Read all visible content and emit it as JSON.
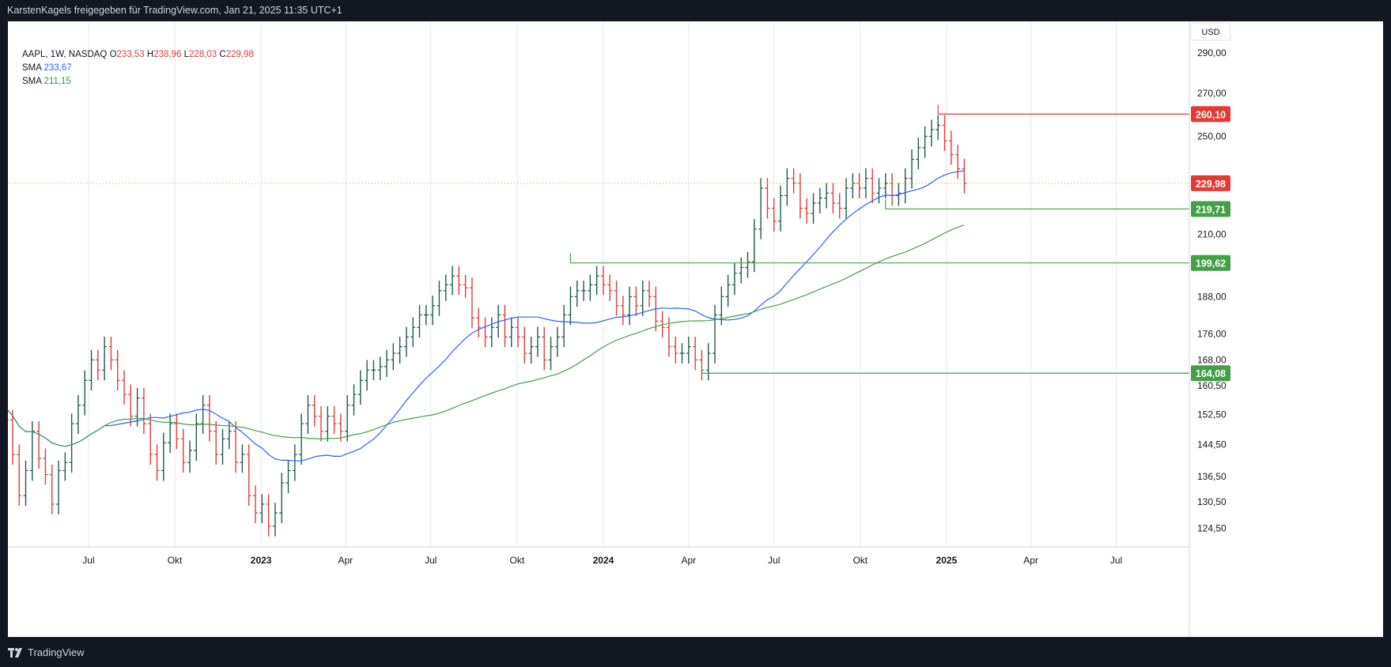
{
  "header": {
    "text": "KarstenKagels freigegeben für TradingView.com, Jan 21, 2025 11:35 UTC+1"
  },
  "footer": {
    "brand": "TradingView"
  },
  "legend": {
    "symbol": "AAPL, 1W, NASDAQ",
    "open_label": "O",
    "open": "233,53",
    "high_label": "H",
    "high": "238,96",
    "low_label": "L",
    "low": "228,03",
    "close_label": "C",
    "close": "229,98",
    "sma1_label": "SMA",
    "sma1_value": "233,67",
    "sma2_label": "SMA",
    "sma2_value": "211,15"
  },
  "currency": "USD",
  "colors": {
    "up": "#1e5c4a",
    "down": "#e03c3c",
    "sma_fast": "#2962ff",
    "sma_slow": "#43a047",
    "level_green": "#43a047",
    "level_red": "#e53935",
    "last_price": "#ff9800"
  },
  "chart_data": {
    "type": "ohlc",
    "scale": "log",
    "y_range": [
      121,
      305
    ],
    "y_ticks": [
      "124,50",
      "130,50",
      "136,50",
      "144,50",
      "152,50",
      "160,50",
      "168,00",
      "176,00",
      "188,00",
      "210,00",
      "250,00",
      "270,00",
      "290,00"
    ],
    "x_ticks": [
      {
        "label": "Jul",
        "date": "2022-07-01",
        "bold": false
      },
      {
        "label": "Okt",
        "date": "2022-10-01",
        "bold": false
      },
      {
        "label": "2023",
        "date": "2023-01-01",
        "bold": true
      },
      {
        "label": "Apr",
        "date": "2023-04-01",
        "bold": false
      },
      {
        "label": "Jul",
        "date": "2023-07-01",
        "bold": false
      },
      {
        "label": "Okt",
        "date": "2023-10-01",
        "bold": false
      },
      {
        "label": "2024",
        "date": "2024-01-01",
        "bold": true
      },
      {
        "label": "Apr",
        "date": "2024-04-01",
        "bold": false
      },
      {
        "label": "Jul",
        "date": "2024-07-01",
        "bold": false
      },
      {
        "label": "Okt",
        "date": "2024-10-01",
        "bold": false
      },
      {
        "label": "2025",
        "date": "2025-01-01",
        "bold": true
      },
      {
        "label": "Apr",
        "date": "2025-04-01",
        "bold": false
      },
      {
        "label": "Jul",
        "date": "2025-07-01",
        "bold": false
      }
    ],
    "x_range": [
      "2022-04-06",
      "2025-09-17"
    ],
    "price_closes": [
      167,
      156,
      152,
      145,
      151,
      142,
      132,
      138,
      148,
      141,
      137,
      130,
      138,
      140,
      150,
      155,
      162,
      168,
      165,
      172,
      168,
      162,
      158,
      152,
      157,
      150,
      142,
      138,
      145,
      150,
      146,
      140,
      143,
      150,
      155,
      148,
      142,
      146,
      148,
      140,
      142,
      132,
      128,
      130,
      125,
      128,
      135,
      138,
      142,
      150,
      155,
      152,
      148,
      152,
      150,
      148,
      155,
      158,
      162,
      165,
      165,
      166,
      168,
      170,
      172,
      175,
      178,
      182,
      182,
      185,
      190,
      192,
      195,
      192,
      191,
      181,
      178,
      175,
      178,
      182,
      175,
      178,
      175,
      170,
      172,
      175,
      168,
      172,
      175,
      182,
      188,
      190,
      190,
      192,
      195,
      192,
      190,
      185,
      182,
      188,
      185,
      190,
      188,
      180,
      178,
      172,
      170,
      170,
      172,
      168,
      165,
      170,
      182,
      188,
      192,
      196,
      198,
      200,
      212,
      228,
      220,
      215,
      225,
      232,
      230,
      220,
      218,
      222,
      224,
      226,
      222,
      220,
      228,
      230,
      228,
      232,
      226,
      228,
      230,
      225,
      226,
      232,
      240,
      245,
      250,
      253,
      255,
      248,
      242,
      236,
      229.98
    ],
    "series": [
      {
        "name": "SMA",
        "value_label": "233,67"
      },
      {
        "name": "SMA",
        "value_label": "211,15"
      }
    ],
    "levels": [
      {
        "label": "260,10",
        "value": 260.1,
        "color": "red",
        "from": "2024-12-23"
      },
      {
        "label": "219,71",
        "value": 219.71,
        "color": "green",
        "from": "2024-10-28"
      },
      {
        "label": "199,62",
        "value": 199.62,
        "color": "green",
        "from": "2023-11-27"
      },
      {
        "label": "164,08",
        "value": 164.08,
        "color": "green",
        "from": "2024-04-15"
      }
    ],
    "last_price": {
      "label": "229,98",
      "value": 229.98
    }
  }
}
